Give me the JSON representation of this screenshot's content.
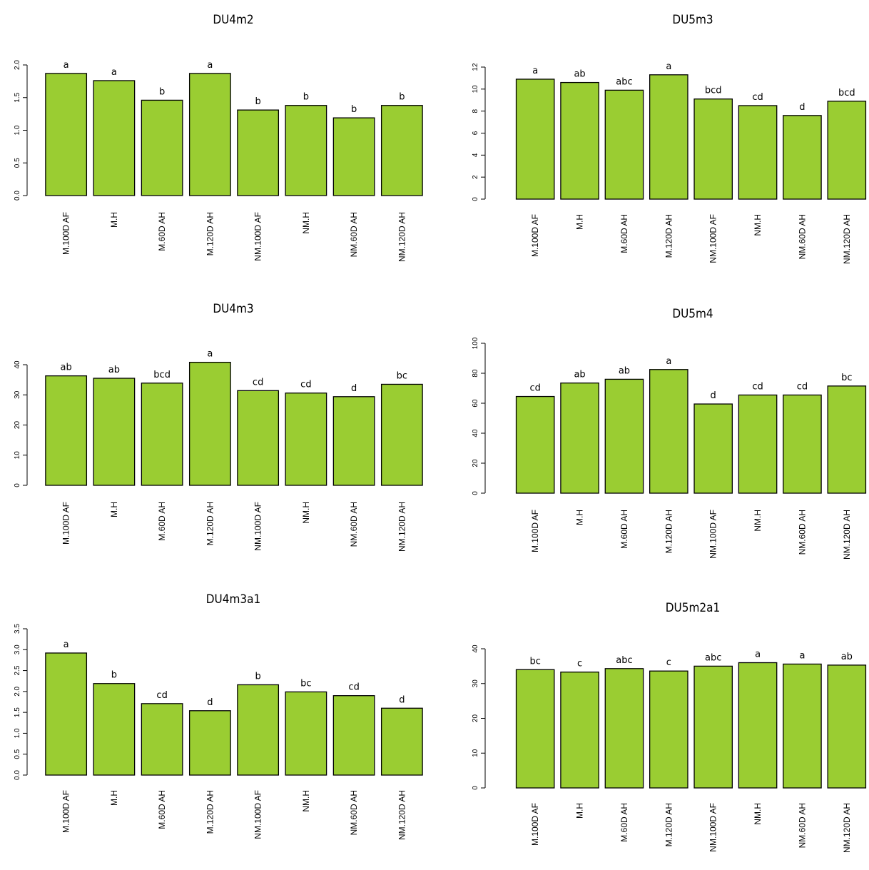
{
  "style": {
    "bar_fill": "#9acd32",
    "bar_stroke": "#000000"
  },
  "chart_data": [
    {
      "type": "bar",
      "title": "DU4m2",
      "categories": [
        "M.100D AF",
        "M.H",
        "M.60D AH",
        "M.120D AH",
        "NM.100D AF",
        "NM.H",
        "NM.60D AH",
        "NM.120D AH"
      ],
      "values": [
        1.87,
        1.76,
        1.46,
        1.87,
        1.31,
        1.38,
        1.19,
        1.38
      ],
      "significance": [
        "a",
        "a",
        "b",
        "a",
        "b",
        "b",
        "b",
        "b"
      ],
      "yticks": [
        0.0,
        0.5,
        1.0,
        1.5,
        2.0
      ],
      "ytick_labels": [
        "0.0",
        "0.5",
        "1.0",
        "1.5",
        "2.0"
      ],
      "ylim": [
        0,
        2.0
      ]
    },
    {
      "type": "bar",
      "title": "DU5m3",
      "categories": [
        "M.100D AF",
        "M.H",
        "M.60D AH",
        "M.120D AH",
        "NM.100D AF",
        "NM.H",
        "NM.60D AH",
        "NM.120D AH"
      ],
      "values": [
        10.9,
        10.6,
        9.9,
        11.3,
        9.1,
        8.5,
        7.6,
        8.9
      ],
      "significance": [
        "a",
        "ab",
        "abc",
        "a",
        "bcd",
        "cd",
        "d",
        "bcd"
      ],
      "yticks": [
        0,
        2,
        4,
        6,
        8,
        10,
        12
      ],
      "ytick_labels": [
        "0",
        "2",
        "4",
        "6",
        "8",
        "10",
        "12"
      ],
      "ylim": [
        0,
        12
      ]
    },
    {
      "type": "bar",
      "title": "DU4m3",
      "categories": [
        "M.100D AF",
        "M.H",
        "M.60D AH",
        "M.120D AH",
        "NM.100D AF",
        "NM.H",
        "NM.60D AH",
        "NM.120D AH"
      ],
      "values": [
        36.3,
        35.5,
        33.9,
        40.8,
        31.4,
        30.6,
        29.4,
        33.5
      ],
      "significance": [
        "ab",
        "ab",
        "bcd",
        "a",
        "cd",
        "cd",
        "d",
        "bc"
      ],
      "yticks": [
        0,
        10,
        20,
        30,
        40
      ],
      "ytick_labels": [
        "0",
        "10",
        "20",
        "30",
        "40"
      ],
      "ylim": [
        0,
        40
      ]
    },
    {
      "type": "bar",
      "title": "DU5m4",
      "categories": [
        "M.100D AF",
        "M.H",
        "M.60D AH",
        "M.120D AH",
        "NM.100D AF",
        "NM.H",
        "NM.60D AH",
        "NM.120D AH"
      ],
      "values": [
        64.5,
        73.5,
        76.0,
        82.5,
        59.5,
        65.5,
        65.5,
        71.5
      ],
      "significance": [
        "cd",
        "ab",
        "ab",
        "a",
        "d",
        "cd",
        "cd",
        "bc"
      ],
      "yticks": [
        0,
        20,
        40,
        60,
        80,
        100
      ],
      "ytick_labels": [
        "0",
        "20",
        "40",
        "60",
        "80",
        "100"
      ],
      "ylim": [
        0,
        100
      ]
    },
    {
      "type": "bar",
      "title": "DU4m3a1",
      "categories": [
        "M.100D AF",
        "M.H",
        "M.60D AH",
        "M.120D AH",
        "NM.100D AF",
        "NM.H",
        "NM.60D AH",
        "NM.120D AH"
      ],
      "values": [
        2.92,
        2.19,
        1.71,
        1.54,
        2.16,
        1.99,
        1.9,
        1.6
      ],
      "significance": [
        "a",
        "b",
        "cd",
        "d",
        "b",
        "bc",
        "cd",
        "d"
      ],
      "yticks": [
        0.0,
        0.5,
        1.0,
        1.5,
        2.0,
        2.5,
        3.0,
        3.5
      ],
      "ytick_labels": [
        "0.0",
        "0.5",
        "1.0",
        "1.5",
        "2.0",
        "2.5",
        "3.0",
        "3.5"
      ],
      "ylim": [
        0,
        3.5
      ]
    },
    {
      "type": "bar",
      "title": "DU5m2a1",
      "categories": [
        "M.100D AF",
        "M.H",
        "M.60D AH",
        "M.120D AH",
        "NM.100D AF",
        "NM.H",
        "NM.60D AH",
        "NM.120D AH"
      ],
      "values": [
        34.0,
        33.3,
        34.3,
        33.6,
        35.0,
        36.0,
        35.6,
        35.3
      ],
      "significance": [
        "bc",
        "c",
        "abc",
        "c",
        "abc",
        "a",
        "a",
        "ab"
      ],
      "yticks": [
        0,
        10,
        20,
        30,
        40
      ],
      "ytick_labels": [
        "0",
        "10",
        "20",
        "30",
        "40"
      ],
      "ylim": [
        0,
        40
      ]
    }
  ]
}
